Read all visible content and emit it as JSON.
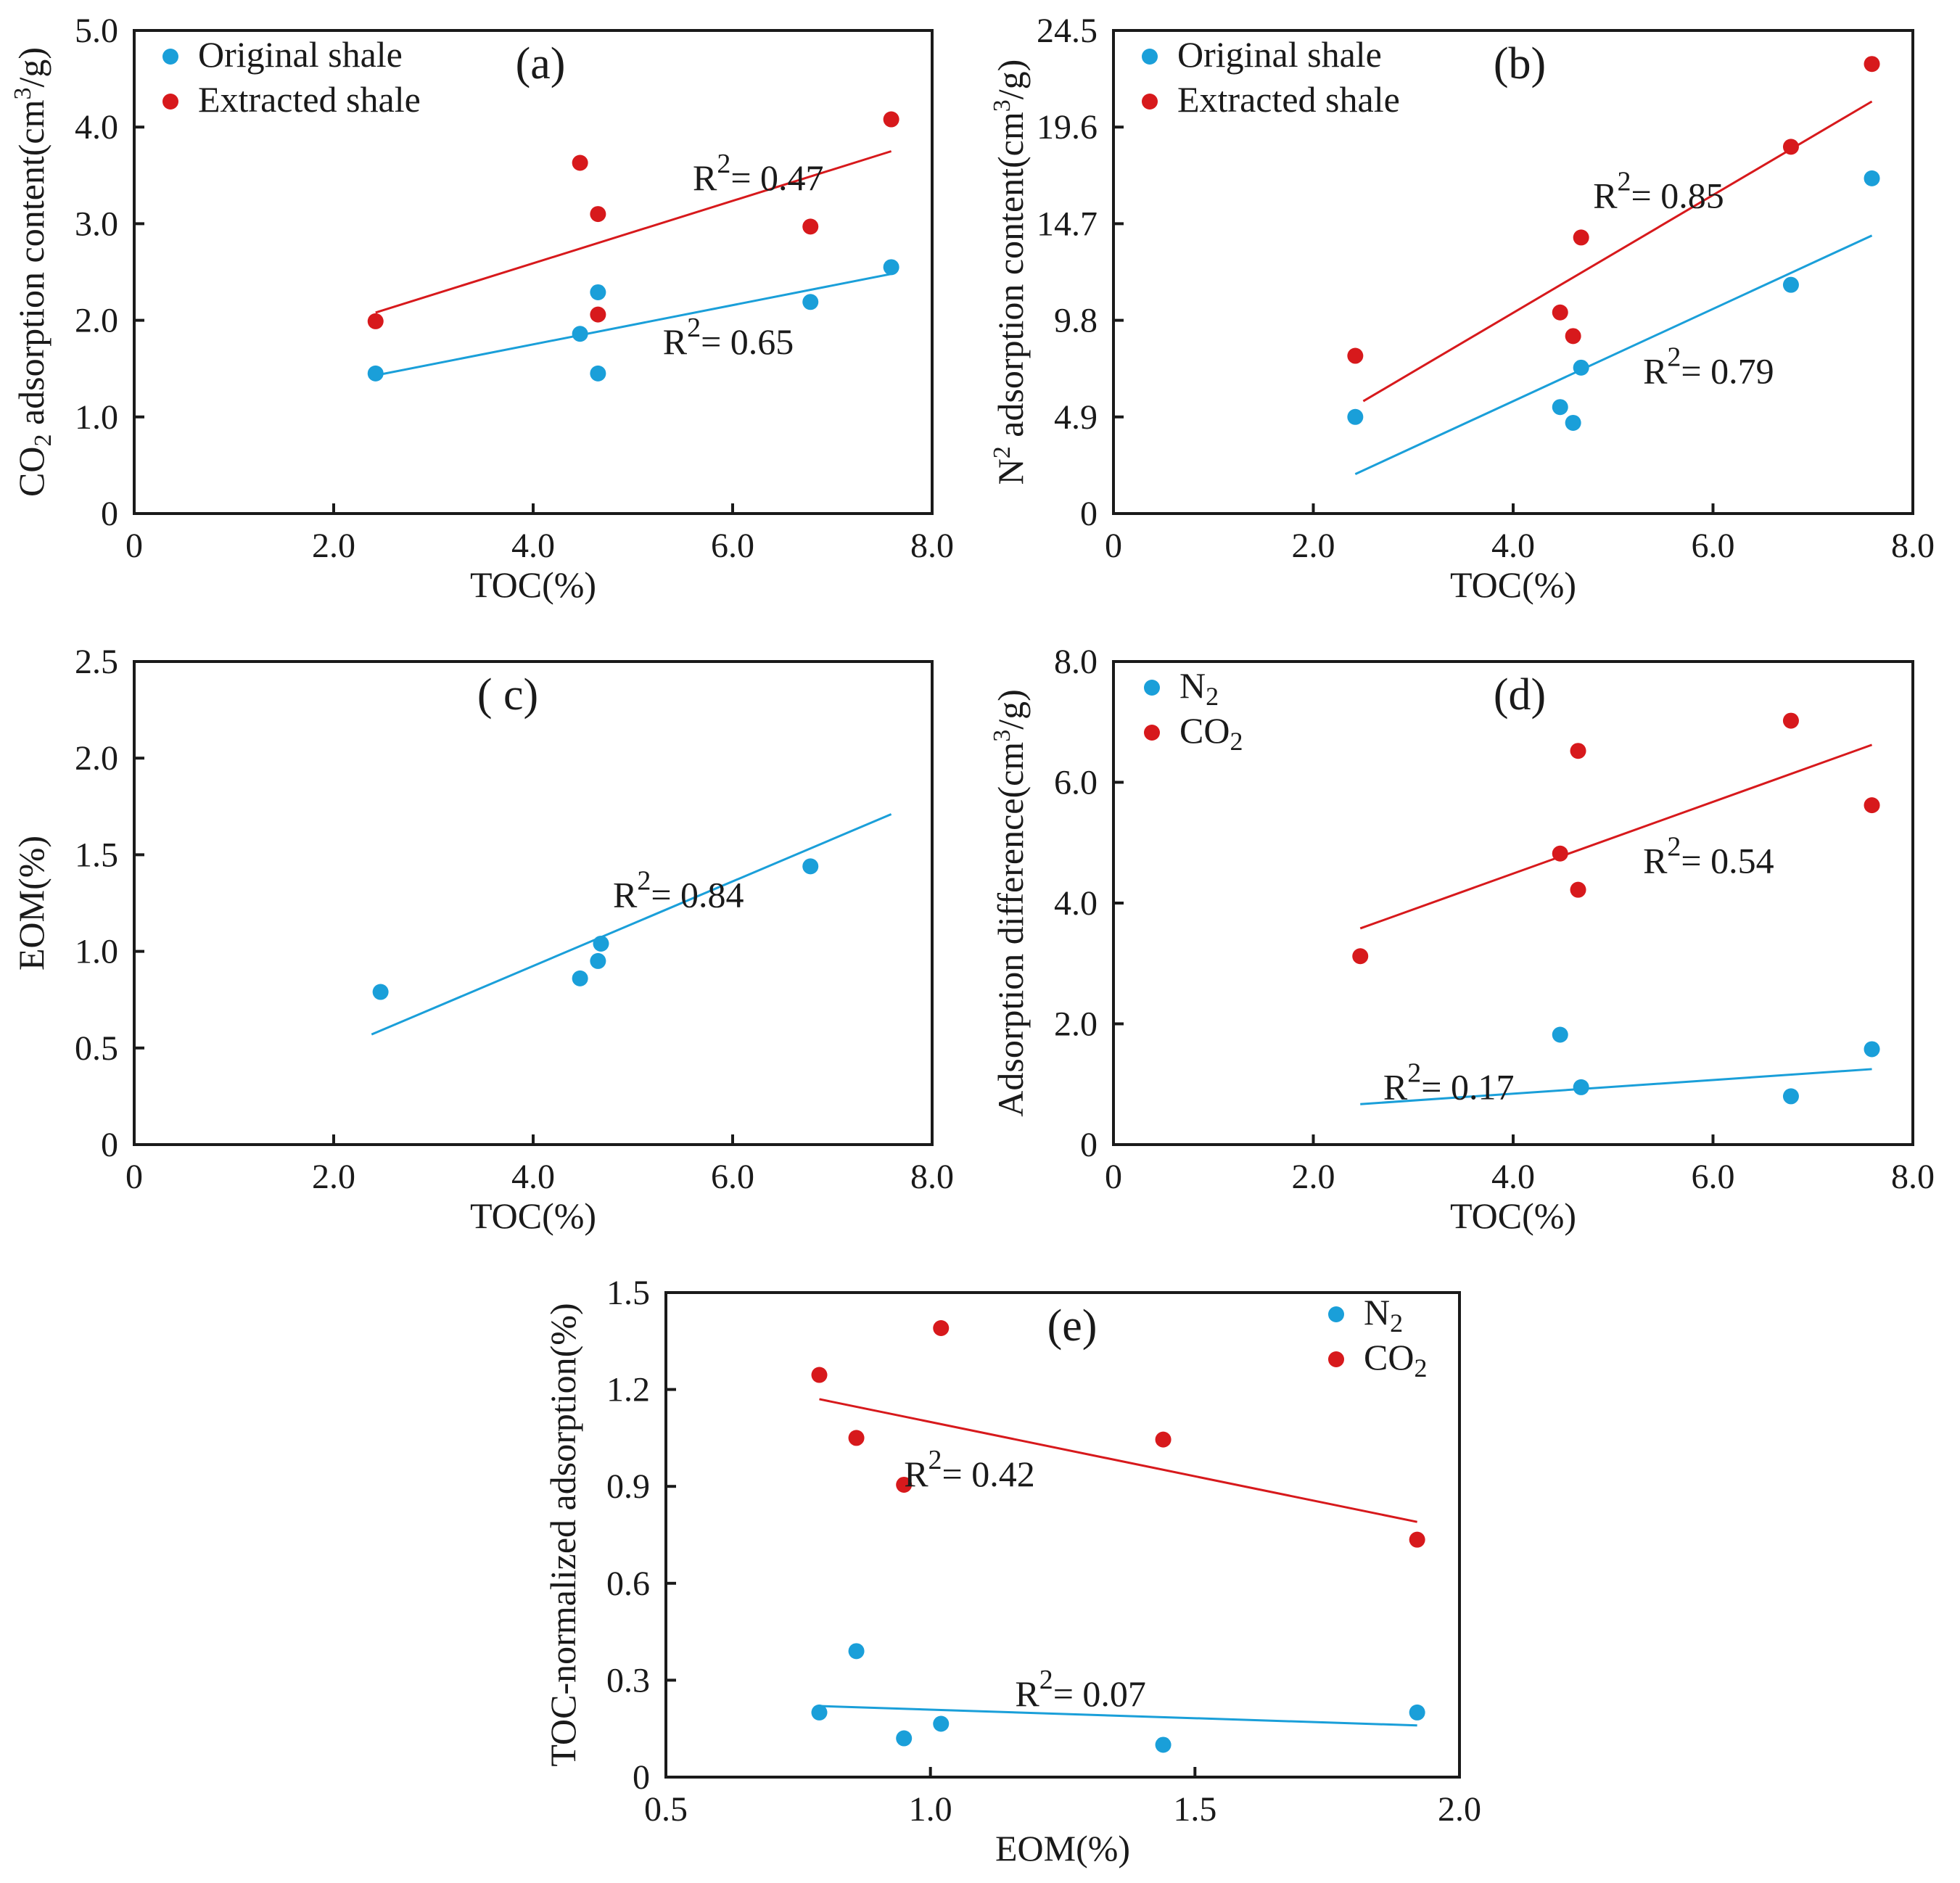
{
  "colors": {
    "blue": "#1a9fd9",
    "red": "#d7191c",
    "axis": "#1a1a1a"
  },
  "chart_data": [
    {
      "id": "a",
      "type": "scatter",
      "panel_label": "(a)",
      "xlabel": "TOC(%)",
      "ylabel": "CO2 adsorption content(cm3/g)",
      "ylabel_parts": [
        "CO",
        "2",
        " adsorption content(cm",
        "3",
        "/g)"
      ],
      "xlim": [
        0,
        8
      ],
      "ylim": [
        0,
        5
      ],
      "xticks": [
        0,
        2,
        4,
        6,
        8
      ],
      "xtick_labels": [
        "0",
        "2.0",
        "4.0",
        "6.0",
        "8.0"
      ],
      "yticks": [
        0,
        1,
        2,
        3,
        4,
        5
      ],
      "ytick_labels": [
        "0",
        "1.0",
        "2.0",
        "3.0",
        "4.0",
        "5.0"
      ],
      "legend": {
        "position": "top-left",
        "entries": [
          {
            "name": "Original shale",
            "color": "blue"
          },
          {
            "name": "Extracted shale",
            "color": "red"
          }
        ]
      },
      "series": [
        {
          "name": "Original shale",
          "color": "blue",
          "x": [
            2.42,
            4.47,
            4.65,
            4.65,
            6.78,
            7.59
          ],
          "y": [
            1.45,
            1.86,
            2.29,
            1.45,
            2.19,
            2.55
          ],
          "fit": [
            [
              2.42,
              1.43
            ],
            [
              7.59,
              2.48
            ]
          ],
          "r2": "R",
          "r2_sup": "2",
          "r2_val": "= 0.65",
          "r2_at": [
            5.3,
            1.65
          ]
        },
        {
          "name": "Extracted shale",
          "color": "red",
          "x": [
            2.42,
            4.47,
            4.65,
            4.65,
            6.78,
            7.59
          ],
          "y": [
            1.99,
            3.63,
            3.1,
            2.06,
            2.97,
            4.08
          ],
          "fit": [
            [
              2.42,
              2.08
            ],
            [
              7.59,
              3.75
            ]
          ],
          "r2": "R",
          "r2_sup": "2",
          "r2_val": "= 0.47",
          "r2_at": [
            5.6,
            3.35
          ]
        }
      ]
    },
    {
      "id": "b",
      "type": "scatter",
      "panel_label": "(b)",
      "xlabel": "TOC(%)",
      "ylabel": "N2 adsorption content(cm3/g)",
      "ylabel_parts": [
        "N",
        "2",
        " adsorption content(cm",
        "3",
        "/g)"
      ],
      "ylabel_sup_first": true,
      "xlim": [
        0,
        8
      ],
      "ylim": [
        0,
        24.5
      ],
      "xticks": [
        0,
        2,
        4,
        6,
        8
      ],
      "xtick_labels": [
        "0",
        "2.0",
        "4.0",
        "6.0",
        "8.0"
      ],
      "yticks": [
        0,
        4.9,
        9.8,
        14.7,
        19.6,
        24.5
      ],
      "ytick_labels": [
        "0",
        "4.9",
        "9.8",
        "14.7",
        "19.6",
        "24.5"
      ],
      "legend": {
        "position": "top-left",
        "entries": [
          {
            "name": "Original shale",
            "color": "blue"
          },
          {
            "name": "Extracted shale",
            "color": "red"
          }
        ]
      },
      "series": [
        {
          "name": "Original shale",
          "color": "blue",
          "x": [
            2.42,
            4.47,
            4.6,
            4.68,
            6.78,
            7.59
          ],
          "y": [
            4.9,
            5.4,
            4.6,
            7.4,
            11.6,
            17.0
          ],
          "fit": [
            [
              2.42,
              2.0
            ],
            [
              7.59,
              14.1
            ]
          ],
          "r2": "R",
          "r2_sup": "2",
          "r2_val": "= 0.79",
          "r2_at": [
            5.3,
            6.6
          ]
        },
        {
          "name": "Extracted shale",
          "color": "red",
          "x": [
            2.42,
            4.47,
            4.6,
            4.68,
            6.78,
            7.59
          ],
          "y": [
            8.0,
            10.2,
            9.0,
            14.0,
            18.6,
            22.8
          ],
          "fit": [
            [
              2.5,
              5.7
            ],
            [
              7.59,
              20.9
            ]
          ],
          "r2": "R",
          "r2_sup": "2",
          "r2_val": "= 0.85",
          "r2_at": [
            4.8,
            15.5
          ]
        }
      ]
    },
    {
      "id": "c",
      "type": "scatter",
      "panel_label": "( c)",
      "xlabel": "TOC(%)",
      "ylabel": "EOM(%)",
      "ylabel_parts": [
        "EOM(%)"
      ],
      "xlim": [
        0,
        8
      ],
      "ylim": [
        0,
        2.5
      ],
      "xticks": [
        0,
        2,
        4,
        6,
        8
      ],
      "xtick_labels": [
        "0",
        "2.0",
        "4.0",
        "6.0",
        "8.0"
      ],
      "yticks": [
        0,
        0.5,
        1.0,
        1.5,
        2.0,
        2.5
      ],
      "ytick_labels": [
        "0",
        "0.5",
        "1.0",
        "1.5",
        "2.0",
        "2.5"
      ],
      "legend": null,
      "series": [
        {
          "name": "EOM",
          "color": "blue",
          "x": [
            2.47,
            4.47,
            4.65,
            4.68,
            6.78
          ],
          "y": [
            0.79,
            0.86,
            0.95,
            1.04,
            1.44
          ],
          "fit": [
            [
              2.38,
              0.57
            ],
            [
              7.59,
              1.71
            ]
          ],
          "r2": "R",
          "r2_sup": "2",
          "r2_val": "= 0.84",
          "r2_at": [
            4.8,
            1.23
          ]
        }
      ]
    },
    {
      "id": "d",
      "type": "scatter",
      "panel_label": "(d)",
      "xlabel": "TOC(%)",
      "ylabel": "Adsorption difference(cm3/g)",
      "ylabel_parts": [
        "Adsorption difference(cm",
        "3",
        "/g)"
      ],
      "xlim": [
        0,
        8
      ],
      "ylim": [
        0,
        8
      ],
      "xticks": [
        0,
        2,
        4,
        6,
        8
      ],
      "xtick_labels": [
        "0",
        "2.0",
        "4.0",
        "6.0",
        "8.0"
      ],
      "yticks": [
        0,
        2,
        4,
        6,
        8
      ],
      "ytick_labels": [
        "0",
        "2.0",
        "4.0",
        "6.0",
        "8.0"
      ],
      "legend": {
        "position": "top-left",
        "entries": [
          {
            "name": "N",
            "sub": "2",
            "color": "blue"
          },
          {
            "name": "CO",
            "sub": "2",
            "color": "red"
          }
        ]
      },
      "series": [
        {
          "name": "N2",
          "color": "blue",
          "x": [
            4.47,
            4.68,
            6.78,
            7.59
          ],
          "y": [
            1.82,
            0.95,
            0.8,
            1.58
          ],
          "fit": [
            [
              2.47,
              0.67
            ],
            [
              7.59,
              1.25
            ]
          ],
          "r2": "R",
          "r2_sup": "2",
          "r2_val": "= 0.17",
          "r2_at": [
            2.7,
            0.75
          ]
        },
        {
          "name": "CO2",
          "color": "red",
          "x": [
            2.47,
            4.47,
            4.65,
            4.65,
            6.78,
            7.59
          ],
          "y": [
            3.12,
            4.82,
            6.52,
            4.22,
            7.02,
            5.62
          ],
          "fit": [
            [
              2.47,
              3.58
            ],
            [
              7.59,
              6.62
            ]
          ],
          "r2": "R",
          "r2_sup": "2",
          "r2_val": "= 0.54",
          "r2_at": [
            5.3,
            4.5
          ]
        }
      ]
    },
    {
      "id": "e",
      "type": "scatter",
      "panel_label": "(e)",
      "xlabel": "EOM(%)",
      "ylabel": "TOC-normalized adsorption(%)",
      "ylabel_parts": [
        "TOC-normalized adsorption(%)"
      ],
      "xlim": [
        0.5,
        2.0
      ],
      "ylim": [
        0,
        1.5
      ],
      "xticks": [
        0.5,
        1.0,
        1.5,
        2.0
      ],
      "xtick_labels": [
        "0.5",
        "1.0",
        "1.5",
        "2.0"
      ],
      "yticks": [
        0,
        0.3,
        0.6,
        0.9,
        1.2,
        1.5
      ],
      "ytick_labels": [
        "0",
        "0.3",
        "0.6",
        "0.9",
        "1.2",
        "1.5"
      ],
      "legend": {
        "position": "top-right",
        "entries": [
          {
            "name": "N",
            "sub": "2",
            "color": "blue"
          },
          {
            "name": "CO",
            "sub": "2",
            "color": "red"
          }
        ]
      },
      "series": [
        {
          "name": "N2",
          "color": "blue",
          "x": [
            0.79,
            0.86,
            0.95,
            1.02,
            1.44,
            1.92
          ],
          "y": [
            0.2,
            0.39,
            0.12,
            0.165,
            0.1,
            0.2
          ],
          "fit": [
            [
              0.79,
              0.22
            ],
            [
              1.92,
              0.16
            ]
          ],
          "r2": "R",
          "r2_sup": "2",
          "r2_val": "= 0.07",
          "r2_at": [
            1.16,
            0.22
          ]
        },
        {
          "name": "CO2",
          "color": "red",
          "x": [
            0.79,
            0.86,
            0.95,
            1.02,
            1.44,
            1.92
          ],
          "y": [
            1.245,
            1.05,
            0.905,
            1.39,
            1.045,
            0.735
          ],
          "fit": [
            [
              0.79,
              1.17
            ],
            [
              1.92,
              0.79
            ]
          ],
          "r2": "R",
          "r2_sup": "2",
          "r2_val": "= 0.42",
          "r2_at": [
            0.95,
            0.9
          ]
        }
      ]
    }
  ]
}
